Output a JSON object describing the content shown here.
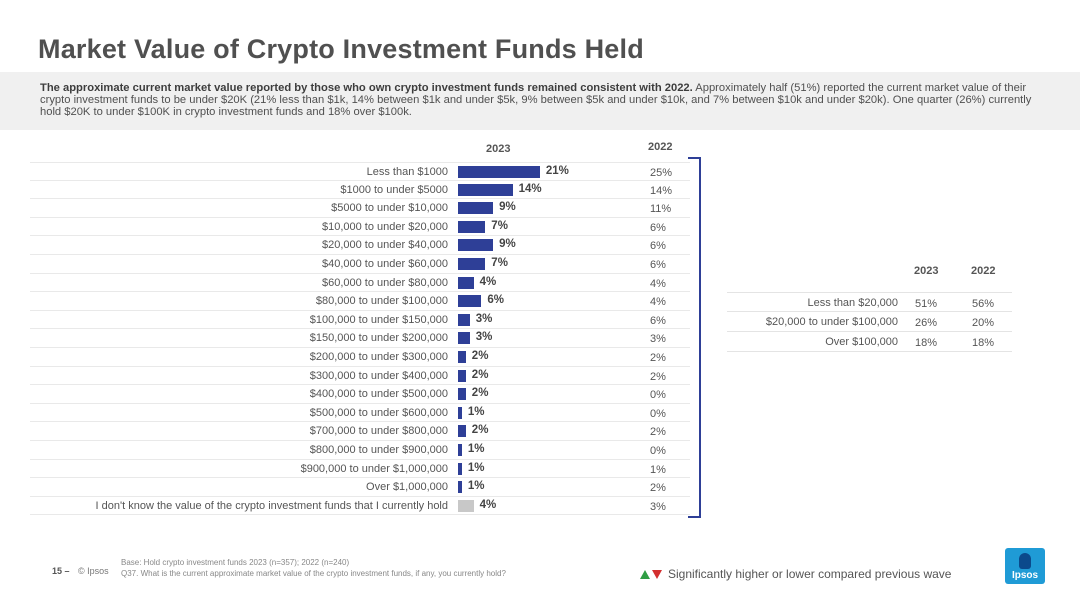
{
  "page": {
    "title": "Market Value of Crypto Investment Funds Held",
    "summary_bold": "The approximate current market value reported by those who own crypto investment funds remained consistent with 2022.",
    "summary_text": " Approximately half (51%) reported the current market value of their crypto investment funds to be under $20K (21% less than $1k, 14% between $1k and under $5k, 9% between $5k and under $10k, and 7% between $10k and under $20k). One quarter (26%) currently hold $20K to under $100K in crypto investment funds and 18% over $100k."
  },
  "chart_data": [
    {
      "type": "bar",
      "orientation": "horizontal",
      "columns": [
        "2023",
        "2022"
      ],
      "categories": [
        "Less than $1000",
        "$1000 to under $5000",
        "$5000 to under $10,000",
        "$10,000 to under $20,000",
        "$20,000 to under $40,000",
        "$40,000 to under $60,000",
        "$60,000 to under $80,000",
        "$80,000 to under $100,000",
        "$100,000 to under $150,000",
        "$150,000 to under $200,000",
        "$200,000 to under $300,000",
        "$300,000 to under $400,000",
        "$400,000 to under $500,000",
        "$500,000 to under $600,000",
        "$700,000 to under $800,000",
        "$800,000 to under $900,000",
        "$900,000 to under $1,000,000",
        "Over $1,000,000",
        "I don't know the value of the crypto investment funds that I currently hold"
      ],
      "values_2023": [
        21,
        14,
        9,
        7,
        9,
        7,
        4,
        6,
        3,
        3,
        2,
        2,
        2,
        1,
        2,
        1,
        1,
        1,
        4
      ],
      "labels_2023": [
        "21%",
        "14%",
        "9%",
        "7%",
        "9%",
        "7%",
        "4%",
        "6%",
        "3%",
        "3%",
        "2%",
        "2%",
        "2%",
        "1%",
        "2%",
        "1%",
        "1%",
        "1%",
        "4%"
      ],
      "labels_2022": [
        "25%",
        "14%",
        "11%",
        "6%",
        "6%",
        "6%",
        "4%",
        "4%",
        "6%",
        "3%",
        "2%",
        "2%",
        "0%",
        "0%",
        "2%",
        "0%",
        "1%",
        "2%",
        "3%"
      ],
      "colors": {
        "bar": "#2e3f97",
        "dont_know": "#c8c8c8"
      }
    },
    {
      "type": "table",
      "columns": [
        "2023",
        "2022"
      ],
      "rows": [
        {
          "label": "Less than $20,000",
          "v2023": "51%",
          "v2022": "56%"
        },
        {
          "label": "$20,000 to under $100,000",
          "v2023": "26%",
          "v2022": "20%"
        },
        {
          "label": "Over $100,000",
          "v2023": "18%",
          "v2022": "18%"
        }
      ]
    }
  ],
  "footer": {
    "page_number": "15 –",
    "copyright": "© Ipsos",
    "base_note": "Base: Hold crypto investment funds 2023 (n=357); 2022 (n=240)",
    "question_note": "Q37. What is the current approximate market value of the crypto investment funds, if any, you currently hold?",
    "legend": "Significantly higher or lower compared previous wave",
    "logo_text": "Ipsos"
  }
}
